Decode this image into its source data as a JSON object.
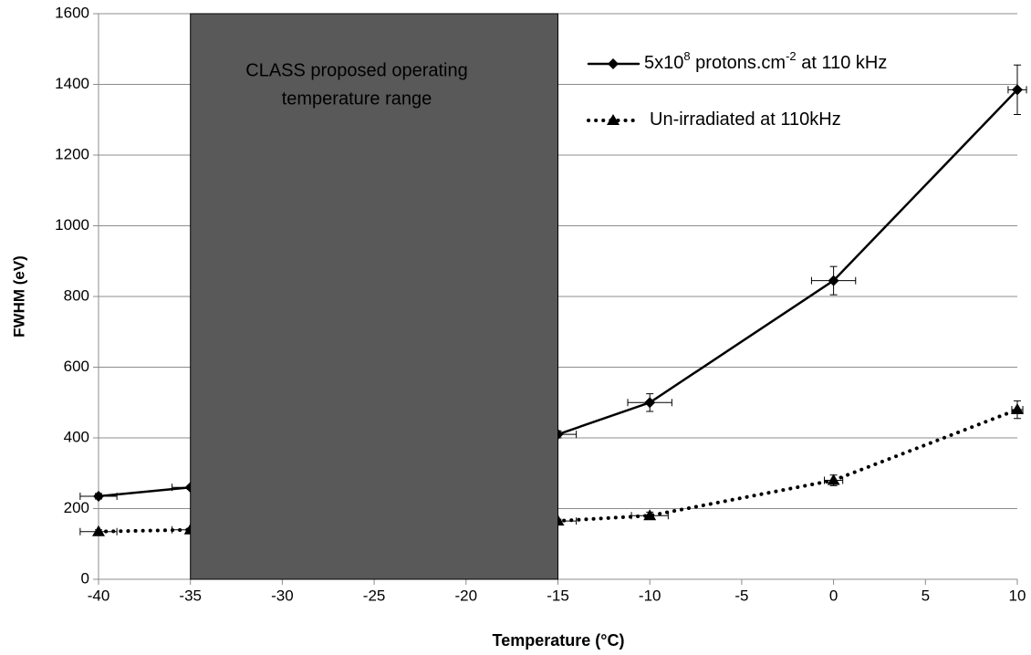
{
  "chart_data": {
    "type": "line",
    "xlabel": "Temperature (°C)",
    "ylabel": "FWHM (eV)",
    "xlim": [
      -40,
      10
    ],
    "xticks": [
      -40,
      -35,
      -30,
      -25,
      -20,
      -15,
      -10,
      -5,
      0,
      5,
      10
    ],
    "ylim": [
      0,
      1600
    ],
    "yticks": [
      0,
      200,
      400,
      600,
      800,
      1000,
      1200,
      1400,
      1600
    ],
    "grid": true,
    "region": {
      "x": [
        -35,
        -15
      ],
      "color": "#595959",
      "label": [
        "CLASS proposed operating",
        "temperature range"
      ]
    },
    "series": [
      {
        "name": [
          {
            "text": "5x10"
          },
          {
            "text": "8",
            "sup": true
          },
          {
            "text": " protons.cm"
          },
          {
            "text": "-2",
            "sup": true
          },
          {
            "text": " at 110 kHz"
          }
        ],
        "color": "#000000",
        "marker": "diamond",
        "dash": "solid",
        "x": [
          -40,
          -35,
          -15,
          -10,
          0,
          10
        ],
        "values": [
          235,
          260,
          410,
          500,
          845,
          1385
        ],
        "yerr": [
          8,
          5,
          10,
          25,
          40,
          70
        ],
        "xerr": [
          1,
          1,
          1,
          1.2,
          1.2,
          0.5
        ]
      },
      {
        "name": [
          {
            "text": "Un-irradiated at 110kHz"
          }
        ],
        "color": "#000000",
        "marker": "triangle",
        "dash": "dotted",
        "x": [
          -40,
          -35,
          -15,
          -10,
          0,
          10
        ],
        "values": [
          135,
          140,
          165,
          180,
          280,
          480
        ],
        "yerr": [
          5,
          5,
          5,
          10,
          15,
          25
        ],
        "xerr": [
          1,
          1,
          1,
          1,
          0.5,
          0.3
        ]
      }
    ]
  }
}
